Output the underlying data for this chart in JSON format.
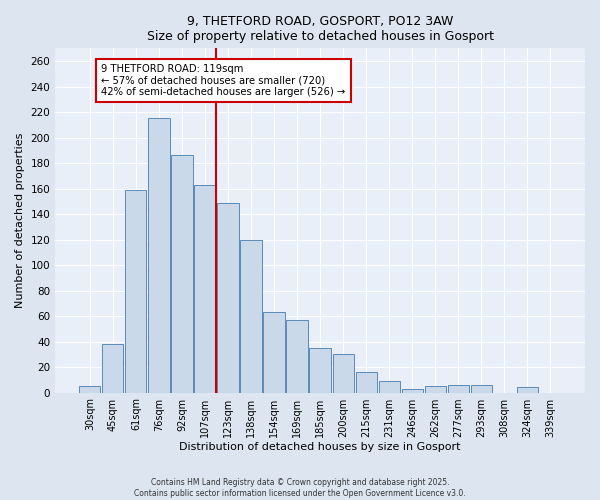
{
  "title": "9, THETFORD ROAD, GOSPORT, PO12 3AW",
  "subtitle": "Size of property relative to detached houses in Gosport",
  "xlabel": "Distribution of detached houses by size in Gosport",
  "ylabel": "Number of detached properties",
  "bin_labels": [
    "30sqm",
    "45sqm",
    "61sqm",
    "76sqm",
    "92sqm",
    "107sqm",
    "123sqm",
    "138sqm",
    "154sqm",
    "169sqm",
    "185sqm",
    "200sqm",
    "215sqm",
    "231sqm",
    "246sqm",
    "262sqm",
    "277sqm",
    "293sqm",
    "308sqm",
    "324sqm",
    "339sqm"
  ],
  "bin_values": [
    5,
    38,
    159,
    215,
    186,
    163,
    149,
    120,
    63,
    57,
    35,
    30,
    16,
    9,
    3,
    5,
    6,
    6,
    0,
    4,
    0
  ],
  "bar_color": "#c9d9ea",
  "bar_edge_color": "#5a8ab8",
  "vline_color": "#cc0000",
  "vline_pos": 5.5,
  "annotation_title": "9 THETFORD ROAD: 119sqm",
  "annotation_line1": "← 57% of detached houses are smaller (720)",
  "annotation_line2": "42% of semi-detached houses are larger (526) →",
  "annotation_box_color": "#ffffff",
  "annotation_box_edge_color": "#cc0000",
  "ylim": [
    0,
    270
  ],
  "yticks": [
    0,
    20,
    40,
    60,
    80,
    100,
    120,
    140,
    160,
    180,
    200,
    220,
    240,
    260
  ],
  "footer1": "Contains HM Land Registry data © Crown copyright and database right 2025.",
  "footer2": "Contains public sector information licensed under the Open Government Licence v3.0.",
  "bg_color": "#dde6f0",
  "plot_bg_color": "#e8eff8"
}
